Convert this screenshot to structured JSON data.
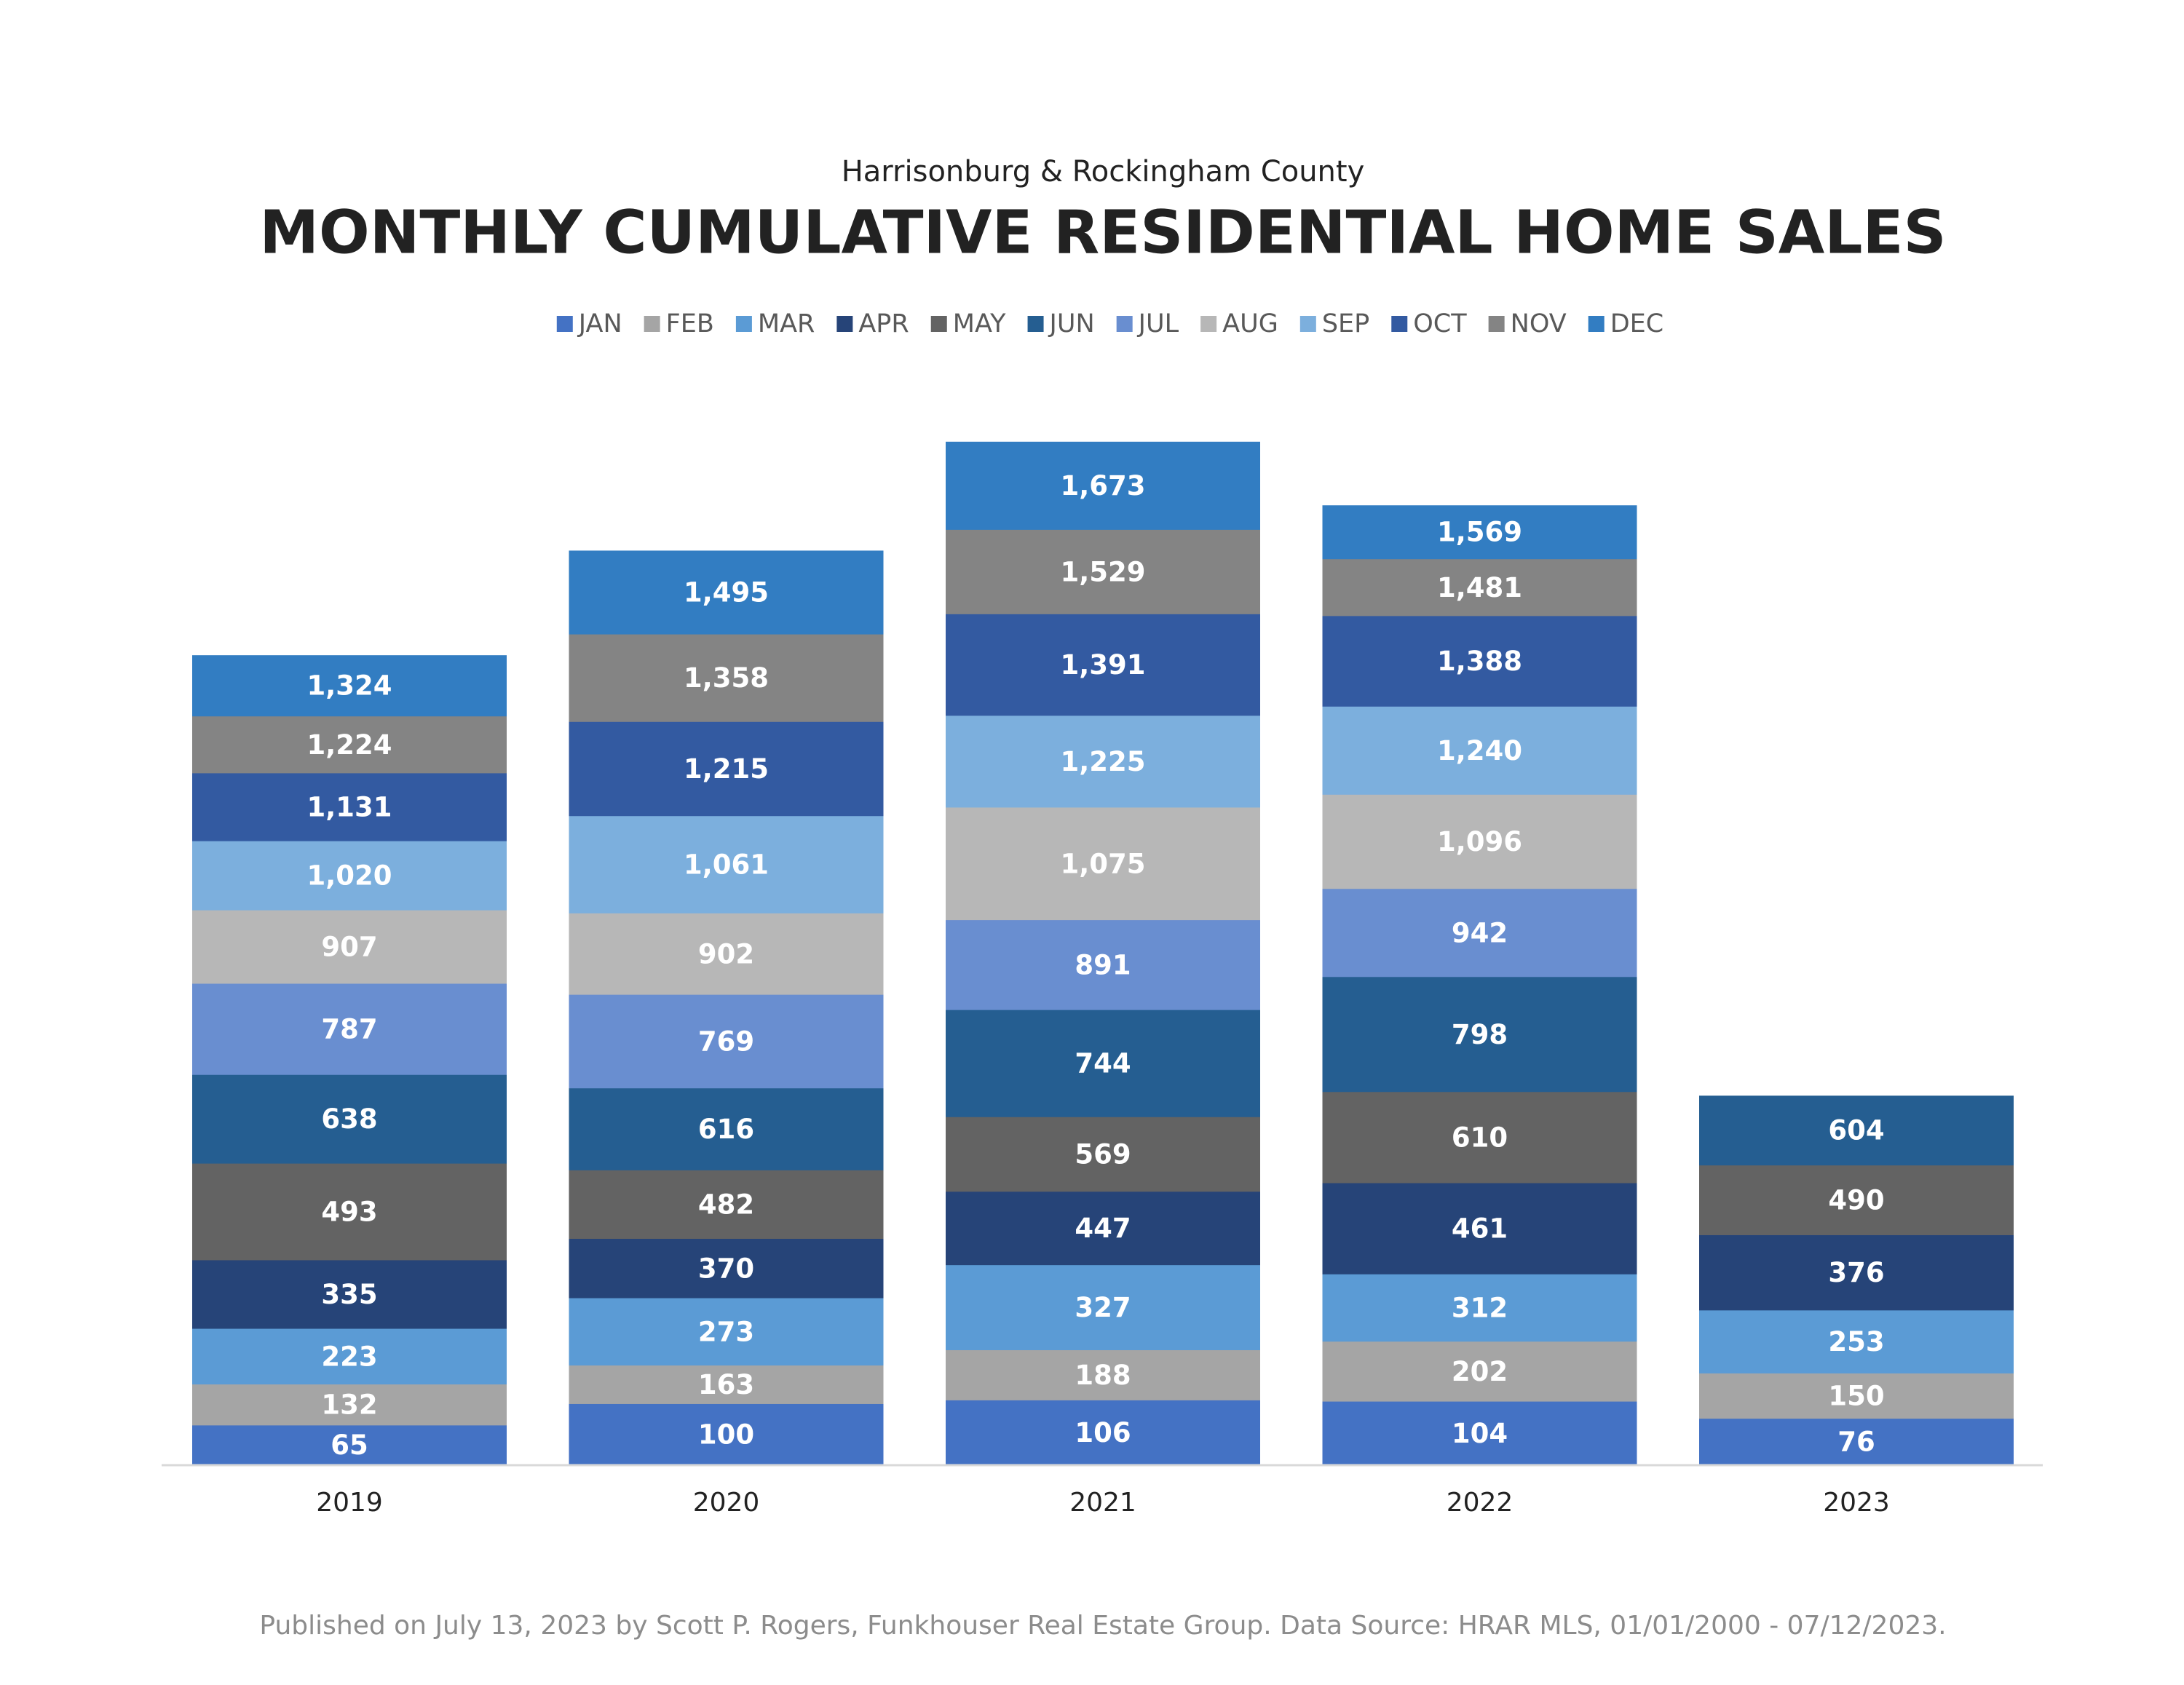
{
  "chart_data": {
    "type": "bar",
    "overlap": true,
    "subtitle": "Harrisonburg & Rockingham County",
    "title": "MONTHLY CUMULATIVE RESIDENTIAL HOME SALES",
    "footnote": "Published on July 13, 2023 by Scott P. Rogers, Funkhouser Real Estate Group. Data Source: HRAR MLS, 01/01/2000 - 07/12/2023.",
    "categories": [
      "2019",
      "2020",
      "2021",
      "2022",
      "2023"
    ],
    "ylim": [
      0,
      2000
    ],
    "legend": "top",
    "series": [
      {
        "name": "JAN",
        "color": "#4472c4",
        "values": [
          65,
          100,
          106,
          104,
          76
        ]
      },
      {
        "name": "FEB",
        "color": "#a5a5a5",
        "values": [
          132,
          163,
          188,
          202,
          150
        ]
      },
      {
        "name": "MAR",
        "color": "#5b9bd5",
        "values": [
          223,
          273,
          327,
          312,
          253
        ]
      },
      {
        "name": "APR",
        "color": "#264478",
        "values": [
          335,
          370,
          447,
          461,
          376
        ]
      },
      {
        "name": "MAY",
        "color": "#636363",
        "values": [
          493,
          482,
          569,
          610,
          490
        ]
      },
      {
        "name": "JUN",
        "color": "#255e91",
        "values": [
          638,
          616,
          744,
          798,
          604
        ]
      },
      {
        "name": "JUL",
        "color": "#698ed0",
        "values": [
          787,
          769,
          891,
          942,
          null
        ]
      },
      {
        "name": "AUG",
        "color": "#b7b7b7",
        "values": [
          907,
          902,
          1075,
          1096,
          null
        ],
        "value_labels": [
          "907",
          "902",
          "1,075",
          "1,096",
          null
        ]
      },
      {
        "name": "SEP",
        "color": "#7cafdd",
        "values": [
          1020,
          1061,
          1225,
          1240,
          null
        ],
        "value_labels": [
          "1,020",
          "1,061",
          "1,225",
          "1,240",
          null
        ]
      },
      {
        "name": "OCT",
        "color": "#335aa1",
        "values": [
          1131,
          1215,
          1391,
          1388,
          null
        ],
        "value_labels": [
          "1,131",
          "1,215",
          "1,391",
          "1,388",
          null
        ]
      },
      {
        "name": "NOV",
        "color": "#848484",
        "values": [
          1224,
          1358,
          1529,
          1481,
          null
        ],
        "value_labels": [
          "1,224",
          "1,358",
          "1,529",
          "1,481",
          null
        ]
      },
      {
        "name": "DEC",
        "color": "#327dc2",
        "values": [
          1324,
          1495,
          1673,
          1569,
          null
        ],
        "value_labels": [
          "1,324",
          "1,495",
          "1,673",
          "1,569",
          null
        ]
      }
    ]
  }
}
